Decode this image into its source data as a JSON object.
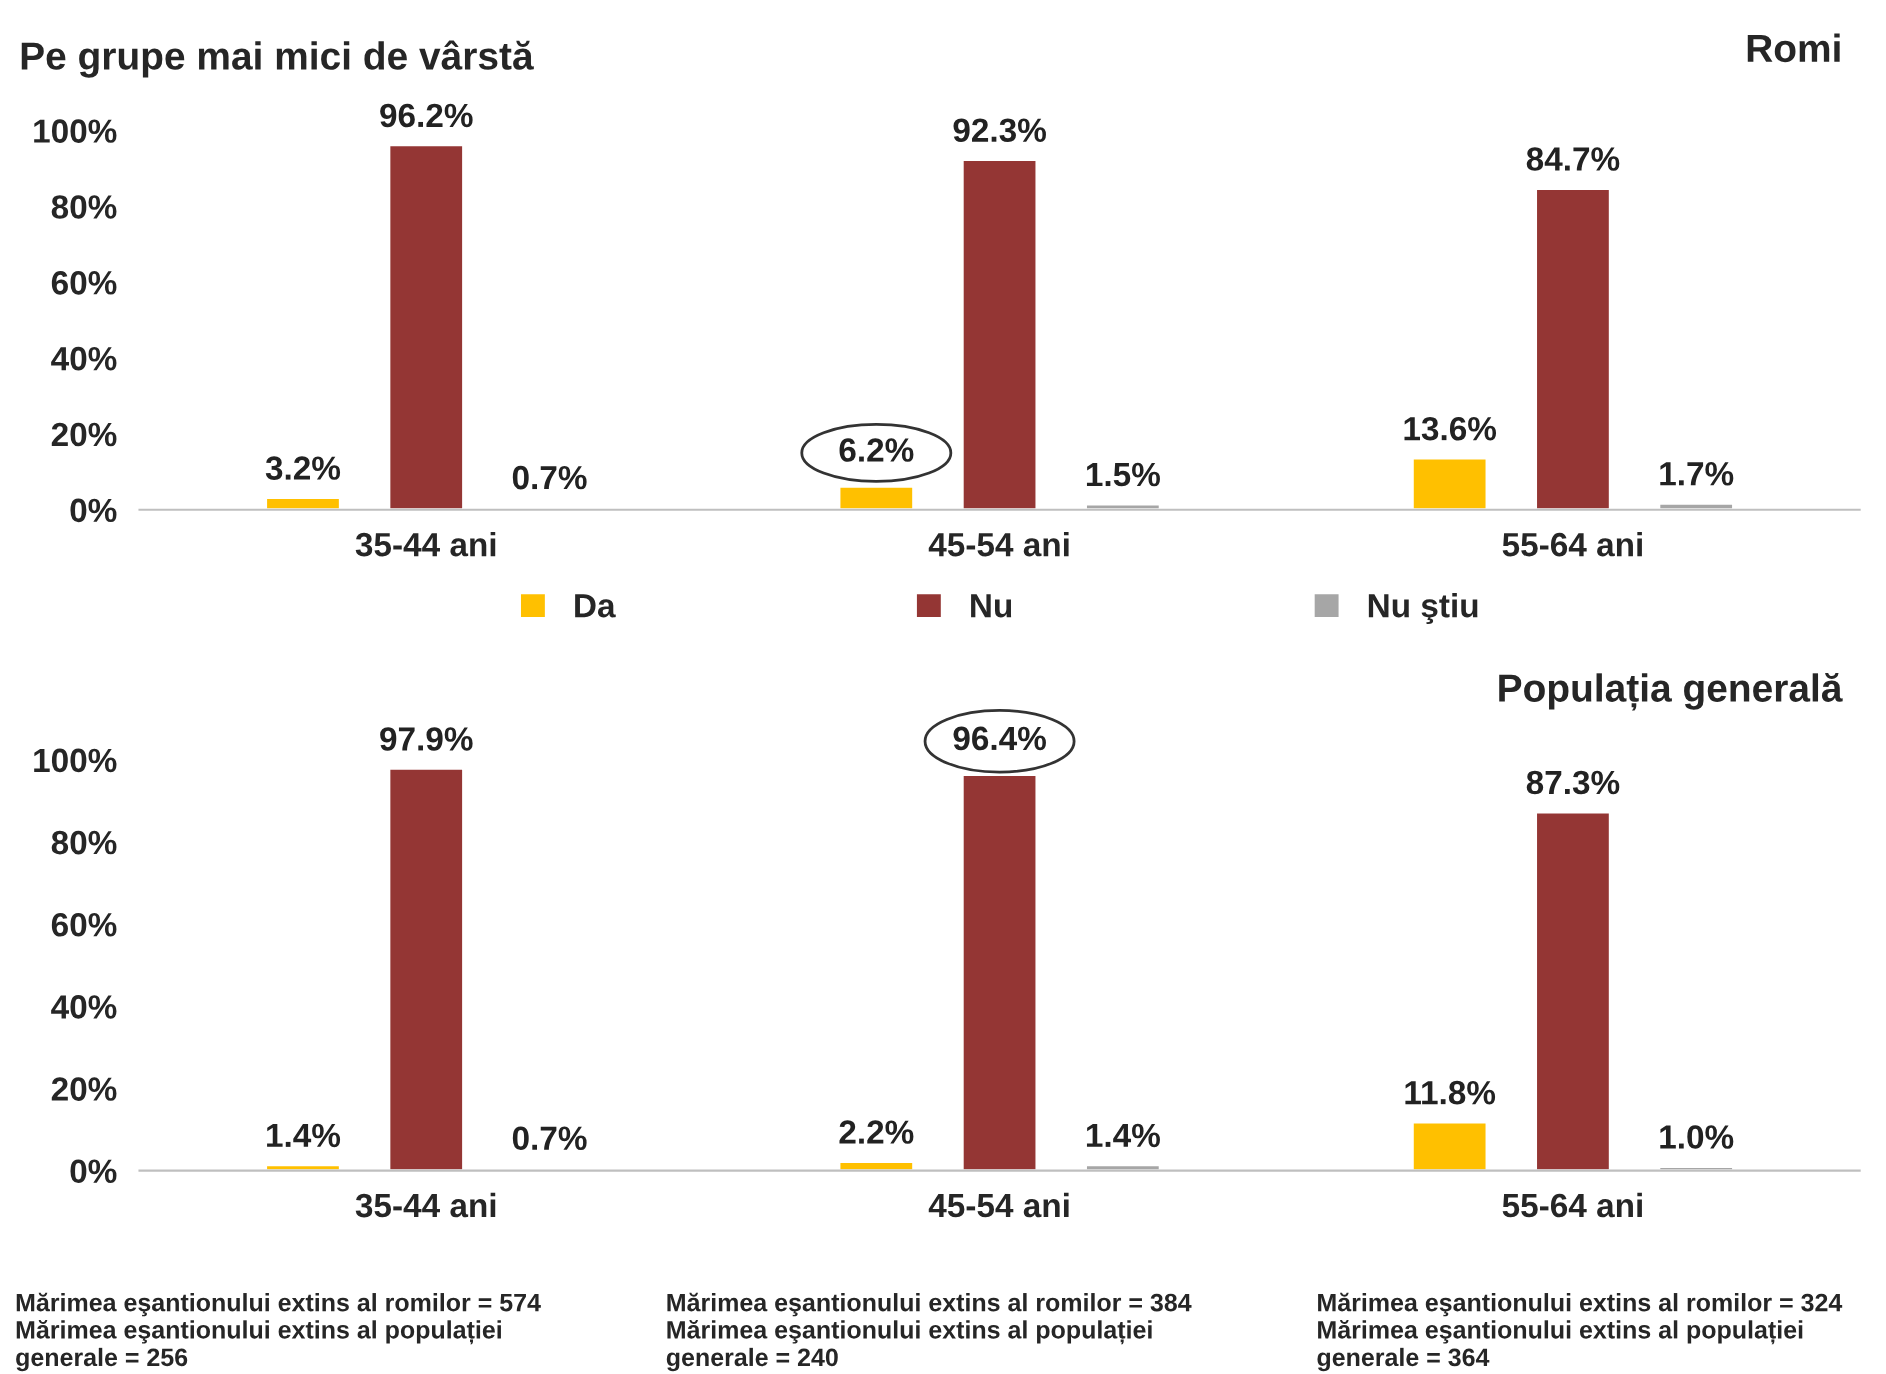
{
  "chart_data": [
    {
      "type": "bar",
      "title": "Pe grupe mai mici de vârstă",
      "subtitle": "Romi",
      "categories": [
        "35-44 ani",
        "45-54 ani",
        "55-64 ani"
      ],
      "series": [
        {
          "name": "Da",
          "color": "#ffc000",
          "values": [
            3.2,
            6.2,
            13.6
          ],
          "value_labels": [
            "3.2%",
            null,
            "13.6%"
          ]
        },
        {
          "name": "Nu",
          "color": "#943634",
          "values": [
            96.2,
            92.3,
            84.7
          ],
          "value_labels": [
            "96.2%",
            "92.3%",
            "84.7%"
          ]
        },
        {
          "name": "Nu ştiu",
          "color": "#a6a6a6",
          "values": [
            0.7,
            1.5,
            1.7
          ],
          "value_labels": [
            "0.7%",
            "1.5%",
            "1.7%"
          ]
        }
      ],
      "annotations": [
        "6.2%"
      ],
      "ylim": [
        0,
        100
      ],
      "yticks": [
        {
          "value": 0,
          "label": "0%"
        },
        {
          "value": 20,
          "label": "20%"
        },
        {
          "value": 40,
          "label": "40%"
        },
        {
          "value": 60,
          "label": "60%"
        },
        {
          "value": 80,
          "label": "80%"
        },
        {
          "value": 100,
          "label": "100%"
        }
      ],
      "grid": false,
      "legend": "bottom"
    },
    {
      "type": "bar",
      "subtitle": "Populația generală",
      "categories": [
        "35-44 ani",
        "45-54 ani",
        "55-64 ani"
      ],
      "series": [
        {
          "color": "#ffc000",
          "values": [
            1.4,
            2.2,
            11.8
          ],
          "value_labels": [
            "1.4%",
            "2.2%",
            "11.8%"
          ]
        },
        {
          "color": "#943634",
          "values": [
            97.9,
            96.4,
            87.3
          ],
          "value_labels": [
            "97.9%",
            null,
            "87.3%"
          ]
        },
        {
          "color": "#a6a6a6",
          "values": [
            0.7,
            1.4,
            1.0
          ],
          "value_labels": [
            "0.7%",
            "1.4%",
            "1.0%"
          ]
        }
      ],
      "annotations": [
        "96.4%",
        "Mărimea eşantionului extins al romilor = 574\nMărimea eşantionului extins al populației\ngenerale = 256",
        "Mărimea eşantionului extins al romilor = 384\nMărimea eşantionului extins al populației\ngenerale = 240",
        "Mărimea eşantionului extins al romilor = 324\nMărimea eşantionului extins al populației\ngenerale = 364"
      ],
      "ylim": [
        0,
        100
      ],
      "yticks": [
        {
          "value": 0,
          "label": "0%"
        },
        {
          "value": 20,
          "label": "20%"
        },
        {
          "value": 40,
          "label": "40%"
        },
        {
          "value": 60,
          "label": "60%"
        },
        {
          "value": 80,
          "label": "80%"
        },
        {
          "value": 100,
          "label": "100%"
        }
      ],
      "grid": false,
      "legend": false
    }
  ]
}
